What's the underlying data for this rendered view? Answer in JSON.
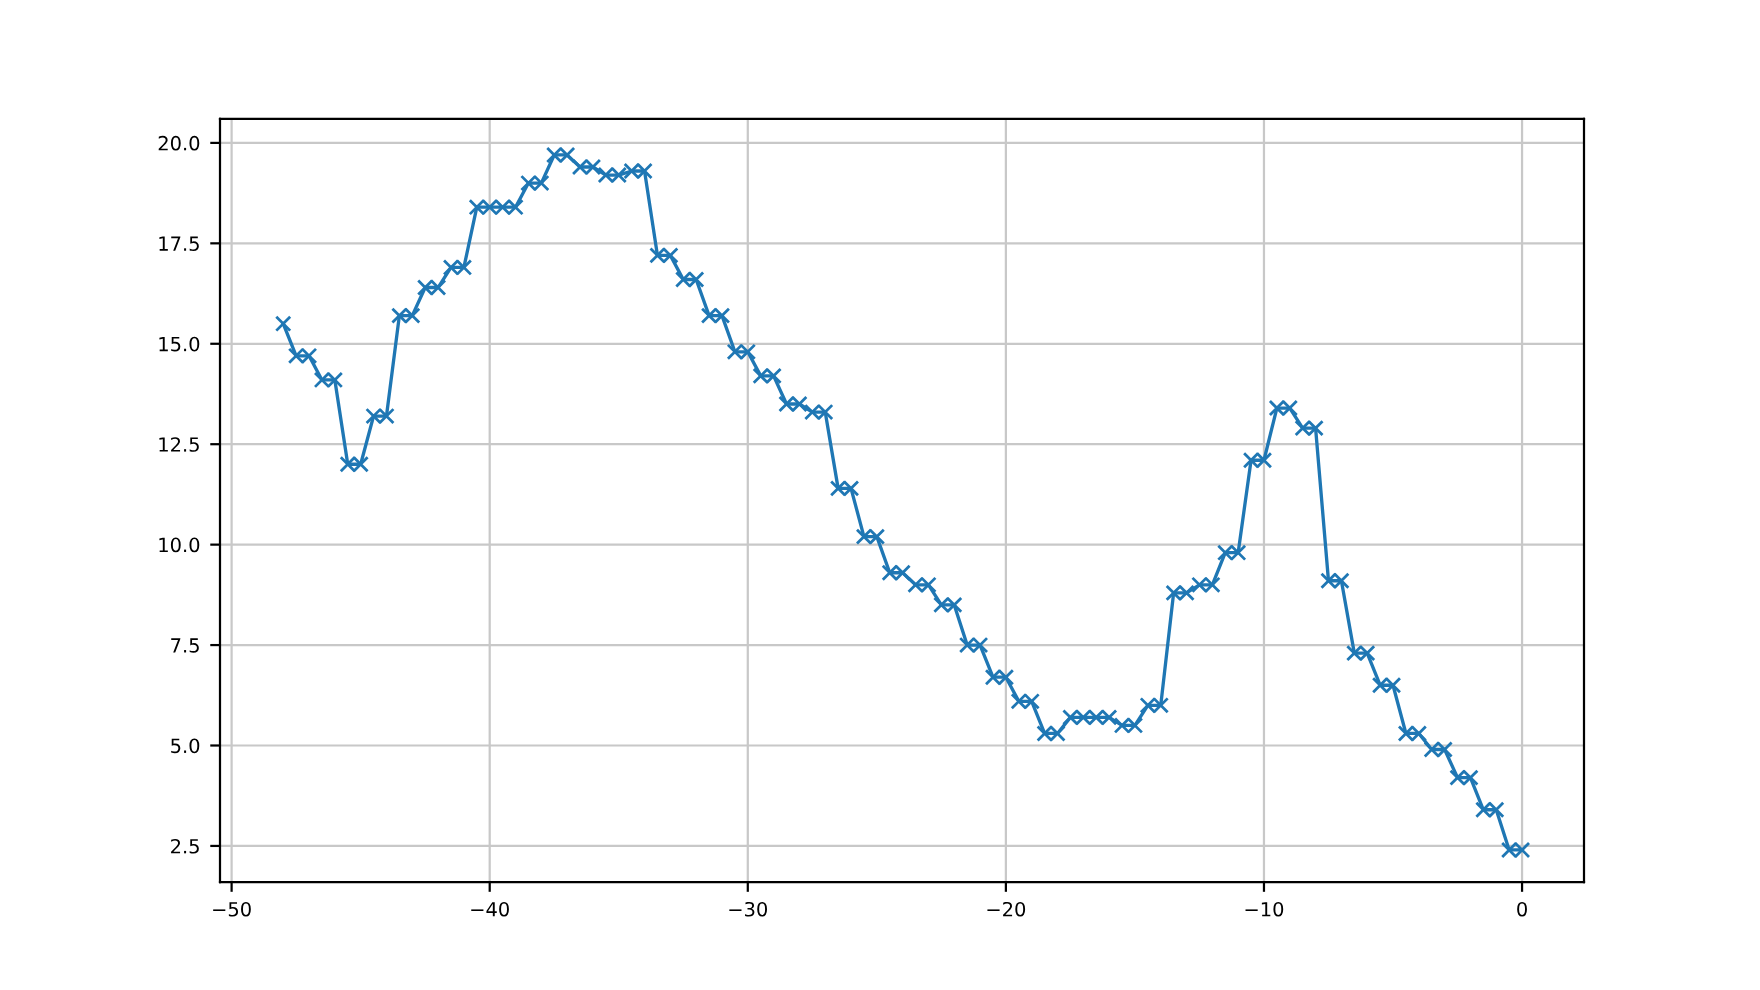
{
  "chart_data": {
    "type": "line",
    "x": [
      -48,
      -47.5,
      -47,
      -46.5,
      -46,
      -45.5,
      -45,
      -44.5,
      -44,
      -43.5,
      -43,
      -42.5,
      -42,
      -41.5,
      -41,
      -40.5,
      -40,
      -39.5,
      -39,
      -38.5,
      -38,
      -37.5,
      -37,
      -36.5,
      -36,
      -35.5,
      -35,
      -34.5,
      -34,
      -33.5,
      -33,
      -32.5,
      -32,
      -31.5,
      -31,
      -30.5,
      -30,
      -29.5,
      -29,
      -28.5,
      -28,
      -27.5,
      -27,
      -26.5,
      -26,
      -25.5,
      -25,
      -24.5,
      -24,
      -23.5,
      -23,
      -22.5,
      -22,
      -21.5,
      -21,
      -20.5,
      -20,
      -19.5,
      -19,
      -18.5,
      -18,
      -17.5,
      -17,
      -16.5,
      -16,
      -15.5,
      -15,
      -14.5,
      -14,
      -13.5,
      -13,
      -12.5,
      -12,
      -11.5,
      -11,
      -10.5,
      -10,
      -9.5,
      -9,
      -8.5,
      -8,
      -7.5,
      -7,
      -6.5,
      -6,
      -5.5,
      -5,
      -4.5,
      -4,
      -3.5,
      -3,
      -2.5,
      -2,
      -1.5,
      -1,
      -0.5,
      0
    ],
    "series": [
      {
        "color": "#1f77b4",
        "values": [
          15.5,
          14.7,
          14.7,
          14.1,
          14.1,
          12.0,
          12.0,
          13.2,
          13.2,
          15.7,
          15.7,
          16.4,
          16.4,
          16.9,
          16.9,
          18.4,
          18.4,
          18.4,
          18.4,
          19.0,
          19.0,
          19.7,
          19.7,
          19.4,
          19.4,
          19.2,
          19.2,
          19.3,
          19.3,
          17.2,
          17.2,
          16.6,
          16.6,
          15.7,
          15.7,
          14.8,
          14.8,
          14.2,
          14.2,
          13.5,
          13.5,
          13.3,
          13.3,
          11.4,
          11.4,
          10.2,
          10.2,
          9.3,
          9.3,
          9.0,
          9.0,
          8.5,
          8.5,
          7.5,
          7.5,
          6.7,
          6.7,
          6.1,
          6.1,
          5.3,
          5.3,
          5.7,
          5.7,
          5.7,
          5.7,
          5.5,
          5.5,
          6.0,
          6.0,
          8.8,
          8.8,
          9.0,
          9.0,
          9.8,
          9.8,
          12.1,
          12.1,
          13.4,
          13.4,
          12.9,
          12.9,
          9.1,
          9.1,
          7.3,
          7.3,
          6.5,
          6.5,
          5.3,
          5.3,
          4.9,
          4.9,
          4.2,
          4.2,
          3.4,
          3.4,
          2.4,
          2.4
        ]
      }
    ],
    "marker": "cross",
    "line_style": "solid",
    "grid": true,
    "xlim": [
      -50.45,
      2.4
    ],
    "ylim": [
      1.6,
      20.6
    ],
    "xticks": [
      {
        "value": -50,
        "label": "−50"
      },
      {
        "value": -40,
        "label": "−40"
      },
      {
        "value": -30,
        "label": "−30"
      },
      {
        "value": -20,
        "label": "−20"
      },
      {
        "value": -10,
        "label": "−10"
      },
      0
    ],
    "yticks": [
      2.5,
      {
        "value": 5,
        "label": "5.0"
      },
      7.5,
      {
        "value": 10,
        "label": "10.0"
      },
      12.5,
      {
        "value": 15,
        "label": "15.0"
      },
      17.5,
      {
        "value": 20,
        "label": "20.0"
      }
    ]
  }
}
